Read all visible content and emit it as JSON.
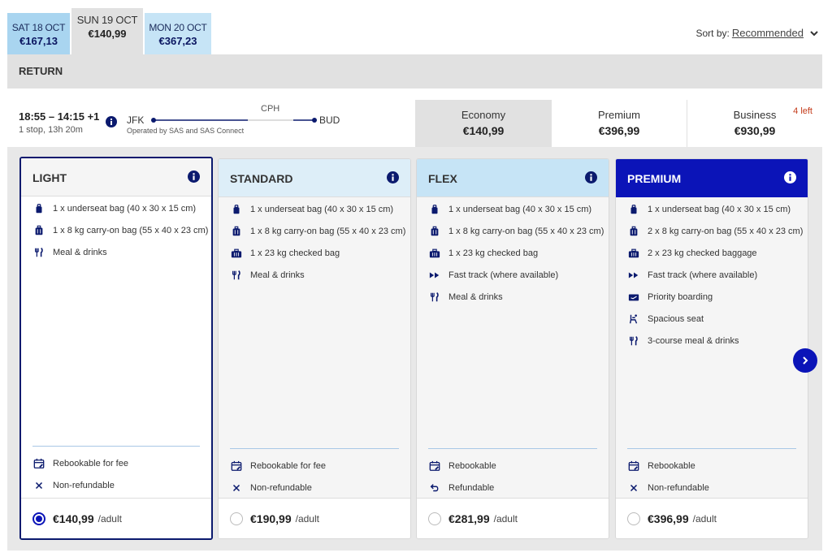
{
  "date_tabs": [
    {
      "day": "SAT 18 OCT",
      "price": "€167,13"
    },
    {
      "day": "SUN 19 OCT",
      "price": "€140,99"
    },
    {
      "day": "MON 20 OCT",
      "price": "€367,23"
    }
  ],
  "sort": {
    "label": "Sort by:",
    "value": "Recommended"
  },
  "section_title": "RETURN",
  "flight": {
    "times": "18:55 – 14:15 +1",
    "stops": "1 stop, 13h 20m",
    "from": "JFK",
    "via": "CPH",
    "to": "BUD",
    "operated_by": "Operated by SAS and SAS Connect"
  },
  "cabins": [
    {
      "name": "Economy",
      "price": "€140,99"
    },
    {
      "name": "Premium",
      "price": "€396,99"
    },
    {
      "name": "Business",
      "price": "€930,99",
      "badge": "4 left"
    }
  ],
  "fares": {
    "light": {
      "name": "LIGHT",
      "features": [
        {
          "icon": "bag-icon",
          "text": "1 x underseat bag (40 x 30 x 15 cm)"
        },
        {
          "icon": "carry-on-icon",
          "text": "1 x 8 kg carry-on bag (55 x 40 x 23 cm)"
        },
        {
          "icon": "meal-icon",
          "text": "Meal & drinks"
        }
      ],
      "conditions": [
        {
          "icon": "rebook-icon",
          "text": "Rebookable for fee"
        },
        {
          "icon": "cross-icon",
          "text": "Non-refundable"
        }
      ],
      "price": "€140,99",
      "per": "/adult"
    },
    "standard": {
      "name": "STANDARD",
      "features": [
        {
          "icon": "bag-icon",
          "text": "1 x underseat bag (40 x 30 x 15 cm)"
        },
        {
          "icon": "carry-on-icon",
          "text": "1 x 8 kg carry-on bag (55 x 40 x 23 cm)"
        },
        {
          "icon": "checked-bag-icon",
          "text": "1 x 23 kg checked bag"
        },
        {
          "icon": "meal-icon",
          "text": "Meal & drinks"
        }
      ],
      "conditions": [
        {
          "icon": "rebook-icon",
          "text": "Rebookable for fee"
        },
        {
          "icon": "cross-icon",
          "text": "Non-refundable"
        }
      ],
      "price": "€190,99",
      "per": "/adult"
    },
    "flex": {
      "name": "FLEX",
      "features": [
        {
          "icon": "bag-icon",
          "text": "1 x underseat bag (40 x 30 x 15 cm)"
        },
        {
          "icon": "carry-on-icon",
          "text": "1 x 8 kg carry-on bag (55 x 40 x 23 cm)"
        },
        {
          "icon": "checked-bag-icon",
          "text": "1 x 23 kg checked bag"
        },
        {
          "icon": "fast-track-icon",
          "text": "Fast track (where available)"
        },
        {
          "icon": "meal-icon",
          "text": "Meal & drinks"
        }
      ],
      "conditions": [
        {
          "icon": "rebook-icon",
          "text": "Rebookable"
        },
        {
          "icon": "refund-icon",
          "text": "Refundable"
        }
      ],
      "price": "€281,99",
      "per": "/adult"
    },
    "premium": {
      "name": "PREMIUM",
      "features": [
        {
          "icon": "bag-icon",
          "text": "1 x underseat bag (40 x 30 x 15 cm)"
        },
        {
          "icon": "carry-on-icon",
          "text": "2 x 8 kg carry-on bag (55 x 40 x 23 cm)"
        },
        {
          "icon": "checked-bag-icon",
          "text": "2 x 23 kg checked baggage"
        },
        {
          "icon": "fast-track-icon",
          "text": "Fast track (where available)"
        },
        {
          "icon": "boarding-pass-icon",
          "text": "Priority boarding"
        },
        {
          "icon": "seat-icon",
          "text": "Spacious seat"
        },
        {
          "icon": "meal-icon",
          "text": "3-course meal & drinks"
        }
      ],
      "conditions": [
        {
          "icon": "rebook-icon",
          "text": "Rebookable"
        },
        {
          "icon": "cross-icon",
          "text": "Non-refundable"
        }
      ],
      "price": "€396,99",
      "per": "/adult"
    }
  },
  "colors": {
    "brand": "#0b14b8",
    "navy": "#0b1a6e",
    "alert": "#c43b1a"
  }
}
